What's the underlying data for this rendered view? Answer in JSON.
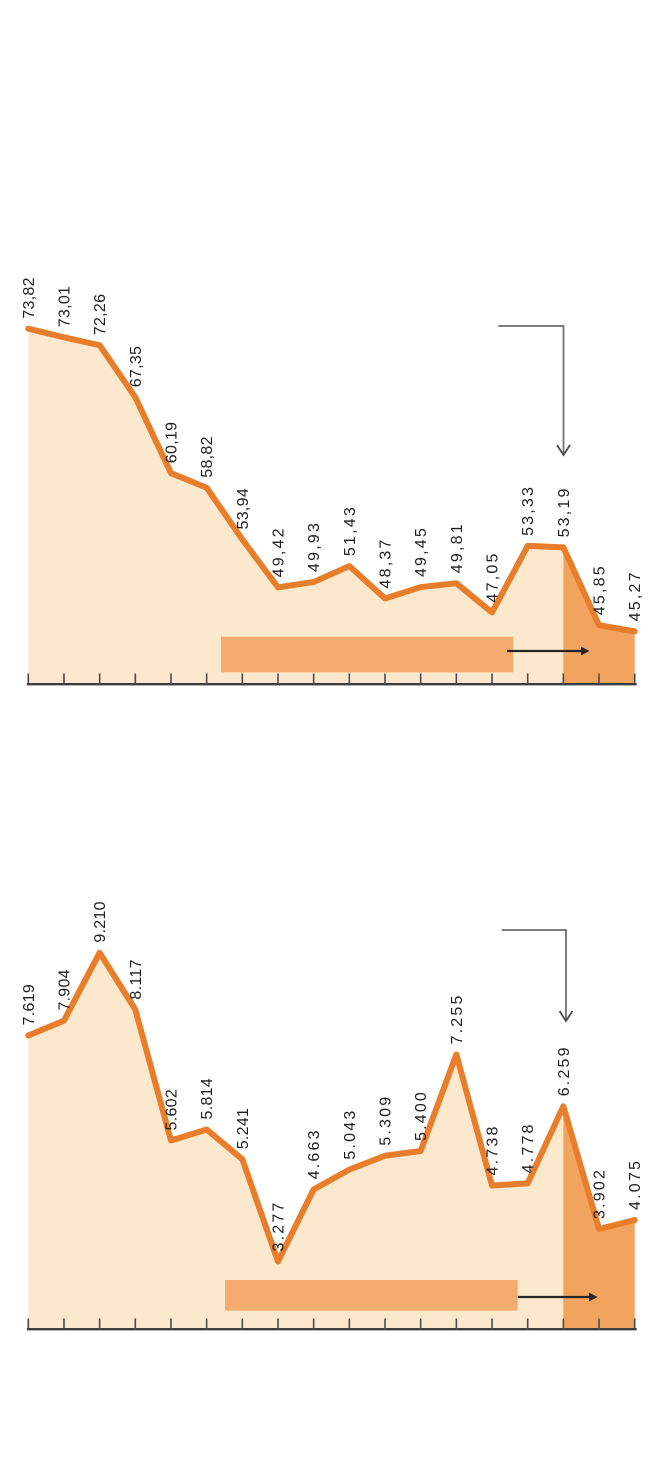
{
  "page_background": "#ffffff",
  "chart_data": [
    {
      "id": "top-chart",
      "type": "area",
      "title": "",
      "labels": [
        "73,82",
        "73,01",
        "72,26",
        "67,35",
        "60,19",
        "58,82",
        "53,94",
        "49,42",
        "49,93",
        "51,43",
        "48,37",
        "49,45",
        "49,81",
        "47,05",
        "53,33",
        "53,19",
        "45,85",
        "45,27"
      ],
      "values": [
        73.82,
        73.01,
        72.26,
        67.35,
        60.19,
        58.82,
        53.94,
        49.42,
        49.93,
        51.43,
        48.37,
        49.45,
        49.81,
        47.05,
        53.33,
        53.19,
        45.85,
        45.27
      ],
      "ylim": [
        40.4,
        74.5
      ],
      "x_axis": "unlabeled category axis, 18 ticks, one per data point",
      "grid": false,
      "legend": false,
      "highlight_from_index": 15,
      "colors": {
        "line": "#e87d2b",
        "area": "#fce9cd",
        "highlight": "#f2a45f",
        "bar": "#f5ab6d",
        "label": "#1f1f1f",
        "axis": "#3d3d3d",
        "tick": "#4a4a4a",
        "elbow_arrow": "#7c7c7c",
        "shift_arrow": "#262626"
      }
    },
    {
      "id": "bottom-chart",
      "type": "area",
      "title": "",
      "labels": [
        "7.619",
        "7.904",
        "9.210",
        "8.117",
        "5.602",
        "5.814",
        "5.241",
        "3.277",
        "4.663",
        "5.043",
        "5.309",
        "5.400",
        "7.255",
        "4.738",
        "4.778",
        "6.259",
        "3.902",
        "4.075"
      ],
      "values": [
        7619,
        7904,
        9210,
        8117,
        5602,
        5814,
        5241,
        3277,
        4663,
        5043,
        5309,
        5400,
        7255,
        4738,
        4778,
        6259,
        3902,
        4075
      ],
      "ylim": [
        2000,
        9300
      ],
      "x_axis": "unlabeled category axis, 18 ticks, one per data point",
      "grid": false,
      "legend": false,
      "highlight_from_index": 15,
      "colors": {
        "line": "#e87d2b",
        "area": "#fce9cd",
        "highlight": "#f2a45f",
        "bar": "#f5ab6d",
        "label": "#1f1f1f",
        "axis": "#3d3d3d",
        "tick": "#4a4a4a",
        "elbow_arrow": "#7c7c7c",
        "shift_arrow": "#262626"
      }
    }
  ]
}
